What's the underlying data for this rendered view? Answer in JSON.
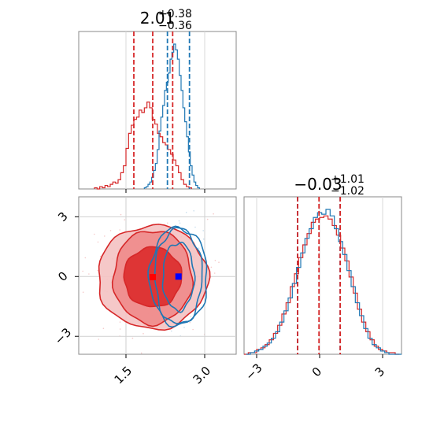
{
  "chart_data": [
    {
      "type": "histogram",
      "panel": "top-left",
      "title": {
        "value": "2.01",
        "sup": "+0.38",
        "sub": "−0.36"
      },
      "xlim": [
        0.6,
        3.6
      ],
      "grid": true,
      "x_ticks": [
        1.5,
        3.0
      ],
      "x_tick_labels_shown": false,
      "quantile_lines": {
        "red": [
          1.65,
          2.01,
          2.39
        ],
        "blue": [
          2.29,
          2.71
        ]
      },
      "series": [
        {
          "name": "",
          "color": "#d62728",
          "bin_start": 0.9,
          "bin_width": 0.05,
          "counts": [
            1,
            0,
            2,
            1,
            3,
            2,
            4,
            6,
            5,
            8,
            14,
            20,
            35,
            48,
            55,
            60,
            62,
            68,
            66,
            70,
            75,
            70,
            60,
            56,
            48,
            45,
            40,
            38,
            34,
            30,
            25,
            20,
            14,
            8,
            4,
            2,
            1
          ]
        },
        {
          "name": "",
          "color": "#1f77b4",
          "bin_start": 1.85,
          "bin_width": 0.035,
          "counts": [
            1,
            2,
            4,
            6,
            10,
            16,
            22,
            34,
            50,
            62,
            72,
            85,
            92,
            100,
            112,
            118,
            125,
            120,
            112,
            98,
            85,
            70,
            58,
            45,
            32,
            20,
            12,
            6,
            3,
            1
          ]
        }
      ]
    },
    {
      "type": "histogram",
      "panel": "bottom-right",
      "title": {
        "value": "−0.03",
        "sup": "+1.01",
        "sub": "−1.02"
      },
      "xlim": [
        -3.6,
        3.9
      ],
      "grid": true,
      "x_ticks": [
        -3,
        0,
        3
      ],
      "x_tick_labels": [
        "−3",
        "0",
        "3"
      ],
      "quantile_lines": {
        "red": [
          -1.05,
          -0.03,
          0.98
        ],
        "blue": [
          -1.05,
          0.98
        ]
      },
      "series": [
        {
          "name": "",
          "color": "#d62728",
          "bin_start": -3.6,
          "bin_width": 0.2,
          "counts": [
            0,
            1,
            1,
            3,
            4,
            6,
            9,
            13,
            18,
            25,
            32,
            42,
            50,
            60,
            68,
            75,
            82,
            84,
            85,
            86,
            84,
            80,
            74,
            66,
            58,
            48,
            38,
            28,
            20,
            14,
            9,
            5,
            3,
            2,
            1,
            1,
            0
          ]
        },
        {
          "name": "",
          "color": "#1f77b4",
          "bin_start": -3.5,
          "bin_width": 0.2,
          "counts": [
            0,
            1,
            2,
            3,
            5,
            7,
            10,
            14,
            20,
            27,
            35,
            44,
            54,
            63,
            72,
            78,
            85,
            88,
            87,
            90,
            86,
            78,
            70,
            62,
            52,
            42,
            32,
            24,
            16,
            10,
            6,
            4,
            2,
            1,
            0,
            0,
            0
          ]
        }
      ]
    },
    {
      "type": "contour",
      "panel": "bottom-left",
      "xlim": [
        0.6,
        3.6
      ],
      "ylim": [
        -3.9,
        4.0
      ],
      "grid": true,
      "x_ticks": [
        1.5,
        3.0
      ],
      "x_tick_labels": [
        "1.5",
        "3.0"
      ],
      "y_ticks": [
        -3,
        0,
        3
      ],
      "y_tick_labels": [
        "−3",
        "0",
        "3"
      ],
      "series": [
        {
          "name": "",
          "color": "#d62728",
          "filled": true,
          "center": [
            2.01,
            -0.03
          ],
          "contour_levels_radii": [
            {
              "rx": 0.75,
              "ry": 2.35
            },
            {
              "rx": 1.05,
              "ry": 2.6
            },
            {
              "rx": 0.55,
              "ry": 1.5
            }
          ]
        },
        {
          "name": "",
          "color": "#1f77b4",
          "filled": false,
          "center": [
            2.5,
            0.0
          ],
          "contour_levels_radii": [
            {
              "rx": 0.3,
              "ry": 1.7
            },
            {
              "rx": 0.45,
              "ry": 2.4
            },
            {
              "rx": 0.55,
              "ry": 2.45
            }
          ]
        }
      ],
      "markers": [
        {
          "x": 2.01,
          "y": -0.03,
          "color": "#ff0000"
        },
        {
          "x": 2.5,
          "y": 0.0,
          "color": "#0000ff"
        }
      ]
    }
  ]
}
